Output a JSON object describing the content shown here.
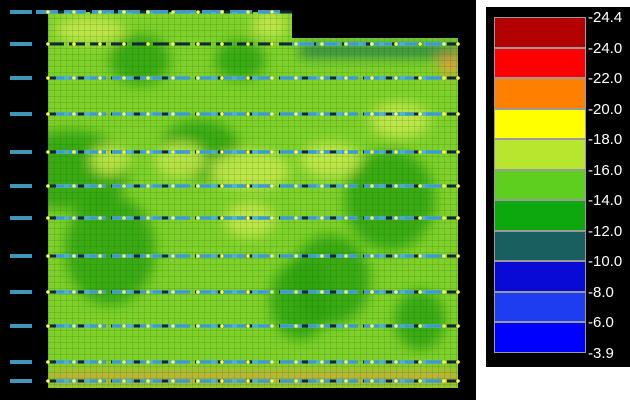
{
  "legend": {
    "labels": [
      "24.4",
      "24.0",
      "22.0",
      "20.0",
      "18.0",
      "16.0",
      "14.0",
      "12.0",
      "10.0",
      "8.0",
      "6.0",
      "3.9"
    ],
    "colors": [
      "#b30000",
      "#ff0000",
      "#ff7f00",
      "#ffff00",
      "#b8e62e",
      "#5fcf1f",
      "#0da80d",
      "#1a5f5f",
      "#0a0ad6",
      "#1e3df0",
      "#0000ff"
    ]
  },
  "plot": {
    "background": "#000000",
    "mesh_colors": {
      "base": "#7fd12a",
      "dark_zone": "#2ea30f",
      "light_zone": "#c4e84a",
      "high_strip": "#e4a038",
      "low_zone": "#1f7a4a",
      "nodes": "#ffff3a",
      "beams": "#10263a",
      "tags": "#4ab0d8"
    }
  }
}
